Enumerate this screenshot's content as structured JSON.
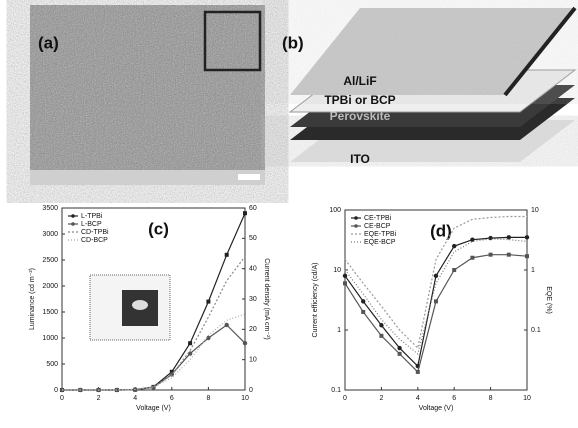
{
  "panels": {
    "a": {
      "label": "(a)"
    },
    "b": {
      "label": "(b)",
      "layers": [
        "Al/LiF",
        "TPBi or BCP",
        "Perovskite",
        "ITO"
      ]
    }
  },
  "chart_data": [
    {
      "type": "line",
      "label": "(c)",
      "xlabel": "Voltage (V)",
      "ylabel": "Luminance (cd m⁻²)",
      "y2label": "Current density (mA cm⁻²)",
      "x": [
        0,
        1,
        2,
        3,
        4,
        5,
        6,
        7,
        8,
        9,
        10
      ],
      "xlim": [
        0,
        10
      ],
      "xticks": [
        0,
        2,
        4,
        6,
        8,
        10
      ],
      "ylim": [
        0,
        3500
      ],
      "yticks": [
        0,
        500,
        1000,
        1500,
        2000,
        2500,
        3000,
        3500
      ],
      "ylog": false,
      "y2lim": [
        0,
        60
      ],
      "y2ticks": [
        0,
        10,
        20,
        30,
        40,
        50,
        60
      ],
      "y2log": false,
      "legend": "upper left",
      "series": [
        {
          "name": "L-TPBi",
          "color": "#222222",
          "marker": "square",
          "dash": "none",
          "values": [
            0,
            0,
            0,
            0,
            5,
            60,
            350,
            900,
            1700,
            2600,
            3400
          ]
        },
        {
          "name": "L-BCP",
          "color": "#555555",
          "marker": "circle",
          "dash": "none",
          "values": [
            0,
            0,
            0,
            0,
            5,
            50,
            300,
            700,
            1000,
            1250,
            900
          ]
        },
        {
          "name": "CD-TPBi",
          "color": "#888888",
          "marker": "none",
          "dash": "2,2",
          "axis": "y2",
          "values": [
            0,
            0,
            0,
            0,
            0.2,
            1,
            5,
            13,
            24,
            36,
            44
          ]
        },
        {
          "name": "CD-BCP",
          "color": "#aaaaaa",
          "marker": "none",
          "dash": "1,2",
          "axis": "y2",
          "values": [
            0,
            0,
            0,
            0,
            0.2,
            1,
            4,
            10,
            18,
            23,
            25
          ]
        }
      ]
    },
    {
      "type": "line",
      "label": "(d)",
      "xlabel": "Voltage (V)",
      "ylabel": "Current efficiency (cd/A)",
      "y2label": "EQE (%)",
      "x": [
        0,
        1,
        2,
        3,
        4,
        5,
        6,
        7,
        8,
        9,
        10
      ],
      "xlim": [
        0,
        10
      ],
      "xticks": [
        0,
        2,
        4,
        6,
        8,
        10
      ],
      "ylim": [
        0.1,
        100
      ],
      "yticks": [
        0.1,
        1,
        10,
        100
      ],
      "ylog": true,
      "y2lim": [
        0.01,
        10
      ],
      "y2ticks": [
        0.1,
        1,
        10
      ],
      "y2log": true,
      "legend": "upper left",
      "series": [
        {
          "name": "CE-TPBi",
          "color": "#222222",
          "marker": "circle",
          "dash": "none",
          "values": [
            8,
            3,
            1.2,
            0.5,
            0.25,
            8,
            25,
            32,
            34,
            35,
            35
          ]
        },
        {
          "name": "CE-BCP",
          "color": "#555555",
          "marker": "square",
          "dash": "none",
          "values": [
            6,
            2,
            0.8,
            0.4,
            0.2,
            3,
            10,
            16,
            18,
            18,
            17
          ]
        },
        {
          "name": "EQE-TPBi",
          "color": "#999999",
          "marker": "none",
          "dash": "2,2",
          "axis": "y2",
          "values": [
            1.5,
            0.6,
            0.25,
            0.1,
            0.05,
            1.5,
            5,
            7,
            7.5,
            7.8,
            7.8
          ]
        },
        {
          "name": "EQE-BCP",
          "color": "#777777",
          "marker": "none",
          "dash": "1,2",
          "axis": "y2",
          "values": [
            1,
            0.4,
            0.15,
            0.07,
            0.04,
            0.6,
            2,
            3,
            3.3,
            3.2,
            3
          ]
        }
      ]
    }
  ]
}
